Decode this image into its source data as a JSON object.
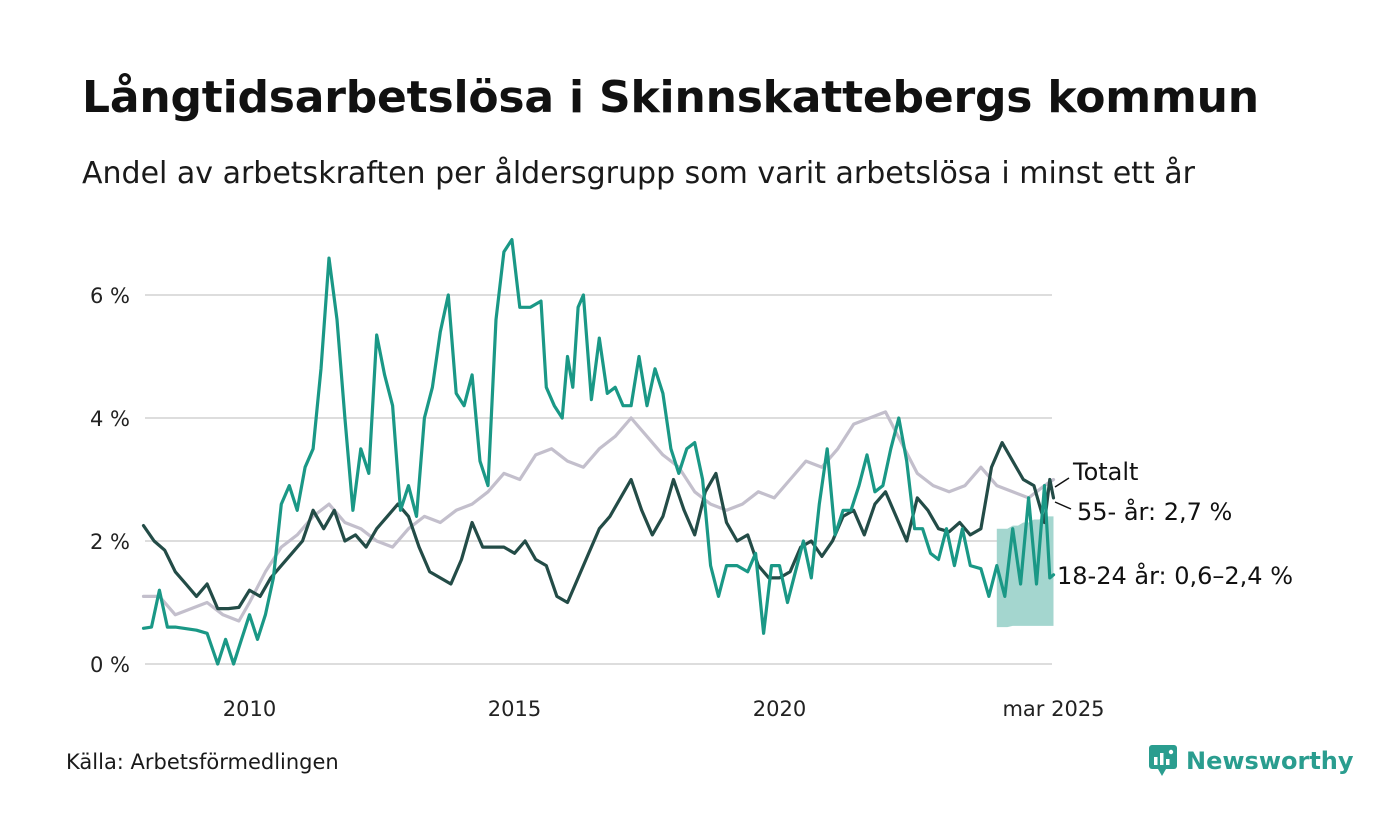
{
  "title": "Långtidsarbetslösa i Skinnskattebergs kommun",
  "subtitle": "Andel av arbetskraften per åldersgrupp som varit arbetslösa i minst ett år",
  "source": "Källa: Arbetsförmedlingen",
  "brand": {
    "name": "Newsworthy",
    "icon": "newsworthy-logo-icon",
    "color": "#2a9d8f"
  },
  "chart_data": {
    "type": "line",
    "ylim": [
      0,
      7
    ],
    "xlim": [
      2008.0,
      2025.2
    ],
    "y_ticks": [
      {
        "value": 0,
        "label": "0 %"
      },
      {
        "value": 2,
        "label": "2 %"
      },
      {
        "value": 4,
        "label": "4 %"
      },
      {
        "value": 6,
        "label": "6 %"
      }
    ],
    "x_ticks": [
      {
        "value": 2010,
        "label": "2010"
      },
      {
        "value": 2015,
        "label": "2015"
      },
      {
        "value": 2020,
        "label": "2020"
      },
      {
        "value": 2025.17,
        "label": "mar 2025"
      }
    ],
    "grid": "horizontal",
    "series": [
      {
        "name": "Totalt",
        "color": "#c3bfcc",
        "points": [
          [
            2008.0,
            1.1
          ],
          [
            2008.3,
            1.1
          ],
          [
            2008.6,
            0.8
          ],
          [
            2008.9,
            0.9
          ],
          [
            2009.2,
            1.0
          ],
          [
            2009.5,
            0.8
          ],
          [
            2009.8,
            0.7
          ],
          [
            2010.0,
            1.0
          ],
          [
            2010.3,
            1.5
          ],
          [
            2010.6,
            1.9
          ],
          [
            2010.9,
            2.1
          ],
          [
            2011.2,
            2.4
          ],
          [
            2011.5,
            2.6
          ],
          [
            2011.8,
            2.3
          ],
          [
            2012.1,
            2.2
          ],
          [
            2012.4,
            2.0
          ],
          [
            2012.7,
            1.9
          ],
          [
            2013.0,
            2.2
          ],
          [
            2013.3,
            2.4
          ],
          [
            2013.6,
            2.3
          ],
          [
            2013.9,
            2.5
          ],
          [
            2014.2,
            2.6
          ],
          [
            2014.5,
            2.8
          ],
          [
            2014.8,
            3.1
          ],
          [
            2015.1,
            3.0
          ],
          [
            2015.4,
            3.4
          ],
          [
            2015.7,
            3.5
          ],
          [
            2016.0,
            3.3
          ],
          [
            2016.3,
            3.2
          ],
          [
            2016.6,
            3.5
          ],
          [
            2016.9,
            3.7
          ],
          [
            2017.2,
            4.0
          ],
          [
            2017.5,
            3.7
          ],
          [
            2017.8,
            3.4
          ],
          [
            2018.1,
            3.2
          ],
          [
            2018.4,
            2.8
          ],
          [
            2018.7,
            2.6
          ],
          [
            2019.0,
            2.5
          ],
          [
            2019.3,
            2.6
          ],
          [
            2019.6,
            2.8
          ],
          [
            2019.9,
            2.7
          ],
          [
            2020.2,
            3.0
          ],
          [
            2020.5,
            3.3
          ],
          [
            2020.8,
            3.2
          ],
          [
            2021.1,
            3.5
          ],
          [
            2021.4,
            3.9
          ],
          [
            2021.7,
            4.0
          ],
          [
            2022.0,
            4.1
          ],
          [
            2022.3,
            3.6
          ],
          [
            2022.6,
            3.1
          ],
          [
            2022.9,
            2.9
          ],
          [
            2023.2,
            2.8
          ],
          [
            2023.5,
            2.9
          ],
          [
            2023.8,
            3.2
          ],
          [
            2024.1,
            2.9
          ],
          [
            2024.4,
            2.8
          ],
          [
            2024.7,
            2.7
          ],
          [
            2025.0,
            2.9
          ],
          [
            2025.17,
            3.0
          ]
        ]
      },
      {
        "name": "55- år",
        "value_label": "55- år: 2,7 %",
        "color": "#234c47",
        "points": [
          [
            2008.0,
            2.25
          ],
          [
            2008.2,
            2.0
          ],
          [
            2008.4,
            1.85
          ],
          [
            2008.6,
            1.5
          ],
          [
            2008.8,
            1.3
          ],
          [
            2009.0,
            1.1
          ],
          [
            2009.2,
            1.3
          ],
          [
            2009.4,
            0.9
          ],
          [
            2009.6,
            0.9
          ],
          [
            2009.8,
            0.92
          ],
          [
            2010.0,
            1.2
          ],
          [
            2010.2,
            1.1
          ],
          [
            2010.4,
            1.4
          ],
          [
            2010.6,
            1.6
          ],
          [
            2010.8,
            1.8
          ],
          [
            2011.0,
            2.0
          ],
          [
            2011.2,
            2.5
          ],
          [
            2011.4,
            2.2
          ],
          [
            2011.6,
            2.5
          ],
          [
            2011.8,
            2.0
          ],
          [
            2012.0,
            2.1
          ],
          [
            2012.2,
            1.9
          ],
          [
            2012.4,
            2.2
          ],
          [
            2012.6,
            2.4
          ],
          [
            2012.8,
            2.6
          ],
          [
            2013.0,
            2.4
          ],
          [
            2013.2,
            1.9
          ],
          [
            2013.4,
            1.5
          ],
          [
            2013.6,
            1.4
          ],
          [
            2013.8,
            1.3
          ],
          [
            2014.0,
            1.7
          ],
          [
            2014.2,
            2.3
          ],
          [
            2014.4,
            1.9
          ],
          [
            2014.6,
            1.9
          ],
          [
            2014.8,
            1.9
          ],
          [
            2015.0,
            1.8
          ],
          [
            2015.2,
            2.0
          ],
          [
            2015.4,
            1.7
          ],
          [
            2015.6,
            1.6
          ],
          [
            2015.8,
            1.1
          ],
          [
            2016.0,
            1.0
          ],
          [
            2016.2,
            1.4
          ],
          [
            2016.4,
            1.8
          ],
          [
            2016.6,
            2.2
          ],
          [
            2016.8,
            2.4
          ],
          [
            2017.0,
            2.7
          ],
          [
            2017.2,
            3.0
          ],
          [
            2017.4,
            2.5
          ],
          [
            2017.6,
            2.1
          ],
          [
            2017.8,
            2.4
          ],
          [
            2018.0,
            3.0
          ],
          [
            2018.2,
            2.5
          ],
          [
            2018.4,
            2.1
          ],
          [
            2018.6,
            2.8
          ],
          [
            2018.8,
            3.1
          ],
          [
            2019.0,
            2.3
          ],
          [
            2019.2,
            2.0
          ],
          [
            2019.4,
            2.1
          ],
          [
            2019.6,
            1.6
          ],
          [
            2019.8,
            1.4
          ],
          [
            2020.0,
            1.4
          ],
          [
            2020.2,
            1.5
          ],
          [
            2020.4,
            1.9
          ],
          [
            2020.6,
            2.0
          ],
          [
            2020.8,
            1.75
          ],
          [
            2021.0,
            2.0
          ],
          [
            2021.2,
            2.4
          ],
          [
            2021.4,
            2.5
          ],
          [
            2021.6,
            2.1
          ],
          [
            2021.8,
            2.6
          ],
          [
            2022.0,
            2.8
          ],
          [
            2022.2,
            2.4
          ],
          [
            2022.4,
            2.0
          ],
          [
            2022.6,
            2.7
          ],
          [
            2022.8,
            2.5
          ],
          [
            2023.0,
            2.2
          ],
          [
            2023.2,
            2.15
          ],
          [
            2023.4,
            2.3
          ],
          [
            2023.6,
            2.1
          ],
          [
            2023.8,
            2.2
          ],
          [
            2024.0,
            3.2
          ],
          [
            2024.2,
            3.6
          ],
          [
            2024.4,
            3.3
          ],
          [
            2024.6,
            3.0
          ],
          [
            2024.8,
            2.9
          ],
          [
            2025.0,
            2.3
          ],
          [
            2025.1,
            3.0
          ],
          [
            2025.17,
            2.7
          ]
        ]
      },
      {
        "name": "18-24 år",
        "value_label": "18-24 år: 0,6–2,4 %",
        "color": "#1a9886",
        "band_color": "#9fd4cc",
        "points": [
          [
            2008.0,
            0.58
          ],
          [
            2008.15,
            0.6
          ],
          [
            2008.3,
            1.2
          ],
          [
            2008.45,
            0.6
          ],
          [
            2008.6,
            0.6
          ],
          [
            2009.0,
            0.55
          ],
          [
            2009.2,
            0.5
          ],
          [
            2009.4,
            0.0
          ],
          [
            2009.55,
            0.4
          ],
          [
            2009.7,
            0.0
          ],
          [
            2009.85,
            0.4
          ],
          [
            2010.0,
            0.8
          ],
          [
            2010.15,
            0.4
          ],
          [
            2010.3,
            0.8
          ],
          [
            2010.45,
            1.4
          ],
          [
            2010.6,
            2.6
          ],
          [
            2010.75,
            2.9
          ],
          [
            2010.9,
            2.5
          ],
          [
            2011.05,
            3.2
          ],
          [
            2011.2,
            3.5
          ],
          [
            2011.35,
            4.8
          ],
          [
            2011.5,
            6.6
          ],
          [
            2011.65,
            5.6
          ],
          [
            2011.8,
            4.0
          ],
          [
            2011.95,
            2.5
          ],
          [
            2012.1,
            3.5
          ],
          [
            2012.25,
            3.1
          ],
          [
            2012.4,
            5.35
          ],
          [
            2012.55,
            4.7
          ],
          [
            2012.7,
            4.2
          ],
          [
            2012.85,
            2.5
          ],
          [
            2013.0,
            2.9
          ],
          [
            2013.15,
            2.4
          ],
          [
            2013.3,
            4.0
          ],
          [
            2013.45,
            4.5
          ],
          [
            2013.6,
            5.4
          ],
          [
            2013.75,
            6.0
          ],
          [
            2013.9,
            4.4
          ],
          [
            2014.05,
            4.2
          ],
          [
            2014.2,
            4.7
          ],
          [
            2014.35,
            3.3
          ],
          [
            2014.5,
            2.9
          ],
          [
            2014.65,
            5.6
          ],
          [
            2014.8,
            6.7
          ],
          [
            2014.95,
            6.9
          ],
          [
            2015.1,
            5.8
          ],
          [
            2015.3,
            5.8
          ],
          [
            2015.5,
            5.9
          ],
          [
            2015.6,
            4.5
          ],
          [
            2015.75,
            4.2
          ],
          [
            2015.9,
            4.0
          ],
          [
            2016.0,
            5.0
          ],
          [
            2016.1,
            4.5
          ],
          [
            2016.2,
            5.8
          ],
          [
            2016.3,
            6.0
          ],
          [
            2016.45,
            4.3
          ],
          [
            2016.6,
            5.3
          ],
          [
            2016.75,
            4.4
          ],
          [
            2016.9,
            4.5
          ],
          [
            2017.05,
            4.2
          ],
          [
            2017.2,
            4.2
          ],
          [
            2017.35,
            5.0
          ],
          [
            2017.5,
            4.2
          ],
          [
            2017.65,
            4.8
          ],
          [
            2017.8,
            4.4
          ],
          [
            2017.95,
            3.5
          ],
          [
            2018.1,
            3.1
          ],
          [
            2018.25,
            3.5
          ],
          [
            2018.4,
            3.6
          ],
          [
            2018.55,
            3.0
          ],
          [
            2018.7,
            1.6
          ],
          [
            2018.85,
            1.1
          ],
          [
            2019.0,
            1.6
          ],
          [
            2019.2,
            1.6
          ],
          [
            2019.4,
            1.5
          ],
          [
            2019.55,
            1.8
          ],
          [
            2019.7,
            0.5
          ],
          [
            2019.85,
            1.6
          ],
          [
            2020.0,
            1.6
          ],
          [
            2020.15,
            1.0
          ],
          [
            2020.3,
            1.5
          ],
          [
            2020.45,
            2.0
          ],
          [
            2020.6,
            1.4
          ],
          [
            2020.75,
            2.6
          ],
          [
            2020.9,
            3.5
          ],
          [
            2021.05,
            2.1
          ],
          [
            2021.2,
            2.5
          ],
          [
            2021.35,
            2.5
          ],
          [
            2021.5,
            2.9
          ],
          [
            2021.65,
            3.4
          ],
          [
            2021.8,
            2.8
          ],
          [
            2021.95,
            2.9
          ],
          [
            2022.1,
            3.5
          ],
          [
            2022.25,
            4.0
          ],
          [
            2022.4,
            3.3
          ],
          [
            2022.55,
            2.2
          ],
          [
            2022.7,
            2.2
          ],
          [
            2022.85,
            1.8
          ],
          [
            2023.0,
            1.7
          ],
          [
            2023.15,
            2.2
          ],
          [
            2023.3,
            1.6
          ],
          [
            2023.45,
            2.2
          ],
          [
            2023.6,
            1.6
          ],
          [
            2023.8,
            1.55
          ],
          [
            2023.95,
            1.1
          ],
          [
            2024.1,
            1.6
          ],
          [
            2024.25,
            1.1
          ],
          [
            2024.4,
            2.2
          ],
          [
            2024.55,
            1.3
          ],
          [
            2024.7,
            2.7
          ],
          [
            2024.85,
            1.3
          ],
          [
            2025.0,
            2.9
          ],
          [
            2025.1,
            1.4
          ],
          [
            2025.17,
            1.45
          ]
        ],
        "band": [
          [
            2024.1,
            0.6,
            2.2
          ],
          [
            2024.2,
            0.6,
            2.2
          ],
          [
            2024.3,
            0.6,
            2.2
          ],
          [
            2024.4,
            0.62,
            2.25
          ],
          [
            2024.5,
            0.62,
            2.25
          ],
          [
            2024.6,
            0.62,
            2.3
          ],
          [
            2024.7,
            0.62,
            2.3
          ],
          [
            2024.8,
            0.62,
            2.35
          ],
          [
            2024.9,
            0.62,
            2.35
          ],
          [
            2025.0,
            0.62,
            2.4
          ],
          [
            2025.17,
            0.62,
            2.4
          ]
        ]
      }
    ]
  }
}
